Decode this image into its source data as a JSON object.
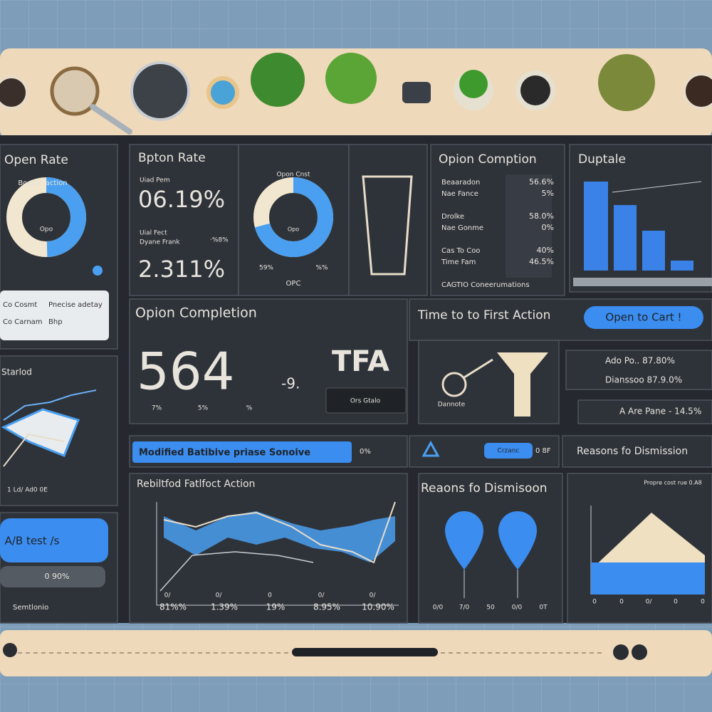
{
  "open_rate": {
    "title": "Open Rate",
    "subtitle": "Bogam action",
    "center": "Opo",
    "list": [
      [
        "Co Cosmt",
        "Pnecise adetay"
      ],
      [
        "Co Carnam",
        "Bhp"
      ]
    ]
  },
  "bpton_rate": {
    "title": "Bpton Rate",
    "label1": "Uiad Pem",
    "value1": "06.19%",
    "label2": "Uial Fect",
    "label3": "Dyane Frank",
    "note": "·%8%",
    "value2": "2.311%"
  },
  "open_cart": {
    "title": "Opon Cnst",
    "center": "Opo",
    "left": "59%",
    "right": "%%",
    "bottom": "OPC"
  },
  "opion_comption": {
    "title": "Opion Comption",
    "rows": [
      [
        "Beaaradon",
        "56.6%"
      ],
      [
        "Nae Fance",
        "5%"
      ],
      [
        "Drolke",
        "58.0%"
      ],
      [
        "Nae Gonme",
        "0%"
      ],
      [
        "Cas To Coo",
        "40%"
      ],
      [
        "Time Fam",
        "46.5%"
      ]
    ],
    "footer": "CAGTIO Coneerumations"
  },
  "duptale": {
    "title": "Duptale"
  },
  "opion_completion": {
    "title": "Opion Completion",
    "value": "564",
    "delta": "-9.",
    "badge": "TFA",
    "badge_label": "Ors Gtalo",
    "ticks": [
      "7%",
      "5%",
      "%"
    ]
  },
  "time_first_action": {
    "title": "Time to to First Action",
    "button": "Open to Cart !",
    "caption": "Dannote",
    "rows": [
      "Ado Po.. 87.80%",
      "Dianssoo 87.9.0%",
      "A Are Pane - 14.5%"
    ]
  },
  "starlod": {
    "title": "Starlod",
    "footer": "1 Ld/ Ad0 0E"
  },
  "strip": {
    "banner": "Modified Batibive priase Sonoive",
    "banner_value": "0%",
    "chip": "Crzanc",
    "chip_value": "0 8F",
    "reasons": "Reasons fo Dismission"
  },
  "rebiltfod": {
    "title": "Rebiltfod Fatlfoct Action",
    "x_top": [
      "0/",
      "0/",
      "0",
      "0/",
      "0/"
    ],
    "x_bottom": [
      "81%%",
      "1.39%",
      "19%",
      "8.95%",
      "10.90%"
    ]
  },
  "reasons": {
    "title": "Reaons fo Dismisoon",
    "x_labels": [
      "0/0",
      "7/0",
      "50",
      "0/0",
      "0T"
    ]
  },
  "propre": {
    "title": "Propre cost rue 0.A8",
    "x_labels": [
      "0",
      "0",
      "0/",
      "0",
      "0"
    ]
  },
  "ab_test": {
    "button": "A/B test /s",
    "value": "0 90%",
    "footer": "Semtlonio"
  }
}
